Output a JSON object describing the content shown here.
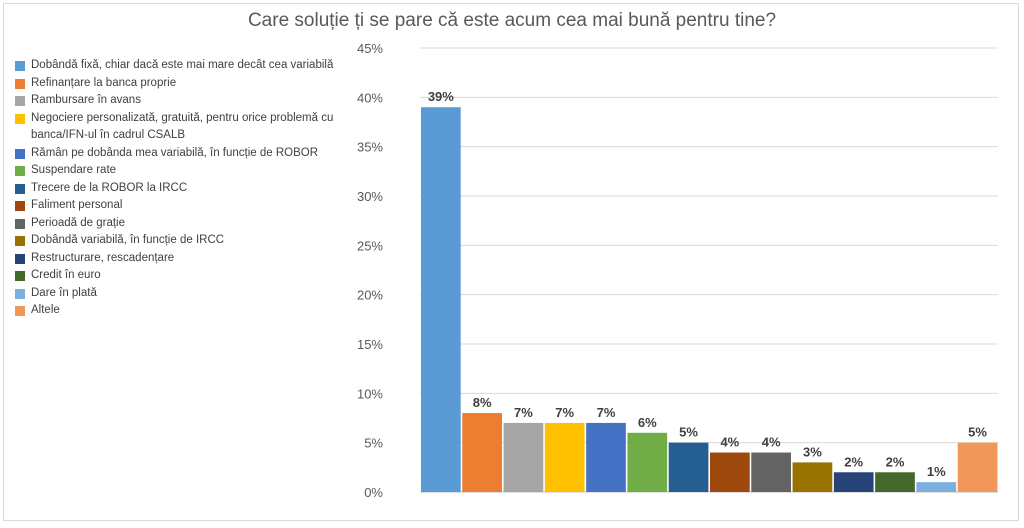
{
  "chart_data": {
    "type": "bar",
    "title": "Care soluție ți se pare că este acum cea mai bună pentru tine?",
    "ylim": [
      0,
      45
    ],
    "yticks": [
      "0%",
      "5%",
      "10%",
      "15%",
      "20%",
      "25%",
      "30%",
      "35%",
      "40%",
      "45%"
    ],
    "grid": true,
    "legend_position": "left",
    "series": [
      {
        "name": "Dobândă fixă, chiar dacă este mai mare decât cea variabilă",
        "value": 39,
        "label": "39%",
        "color": "#5b9bd5"
      },
      {
        "name": "Refinanțare la banca proprie",
        "value": 8,
        "label": "8%",
        "color": "#ed7d31"
      },
      {
        "name": "Rambursare în avans",
        "value": 7,
        "label": "7%",
        "color": "#a5a5a5"
      },
      {
        "name": "Negociere personalizată, gratuită, pentru orice problemă cu banca/IFN-ul în cadrul CSALB",
        "value": 7,
        "label": "7%",
        "color": "#ffc000"
      },
      {
        "name": "Rămân pe dobânda mea variabilă, în funcție de ROBOR",
        "value": 7,
        "label": "7%",
        "color": "#4472c4"
      },
      {
        "name": "Suspendare rate",
        "value": 6,
        "label": "6%",
        "color": "#70ad47"
      },
      {
        "name": "Trecere de la ROBOR la IRCC",
        "value": 5,
        "label": "5%",
        "color": "#255e91"
      },
      {
        "name": "Faliment personal",
        "value": 4,
        "label": "4%",
        "color": "#9e480e"
      },
      {
        "name": "Perioadă de grație",
        "value": 4,
        "label": "4%",
        "color": "#636363"
      },
      {
        "name": "Dobândă variabilă, în funcție de IRCC",
        "value": 3,
        "label": "3%",
        "color": "#997300"
      },
      {
        "name": "Restructurare, rescadențare",
        "value": 2,
        "label": "2%",
        "color": "#264478"
      },
      {
        "name": "Credit în euro",
        "value": 2,
        "label": "2%",
        "color": "#43682b"
      },
      {
        "name": "Dare în plată",
        "value": 1,
        "label": "1%",
        "color": "#7cafdd"
      },
      {
        "name": "Altele",
        "value": 5,
        "label": "5%",
        "color": "#f1975a"
      }
    ]
  }
}
